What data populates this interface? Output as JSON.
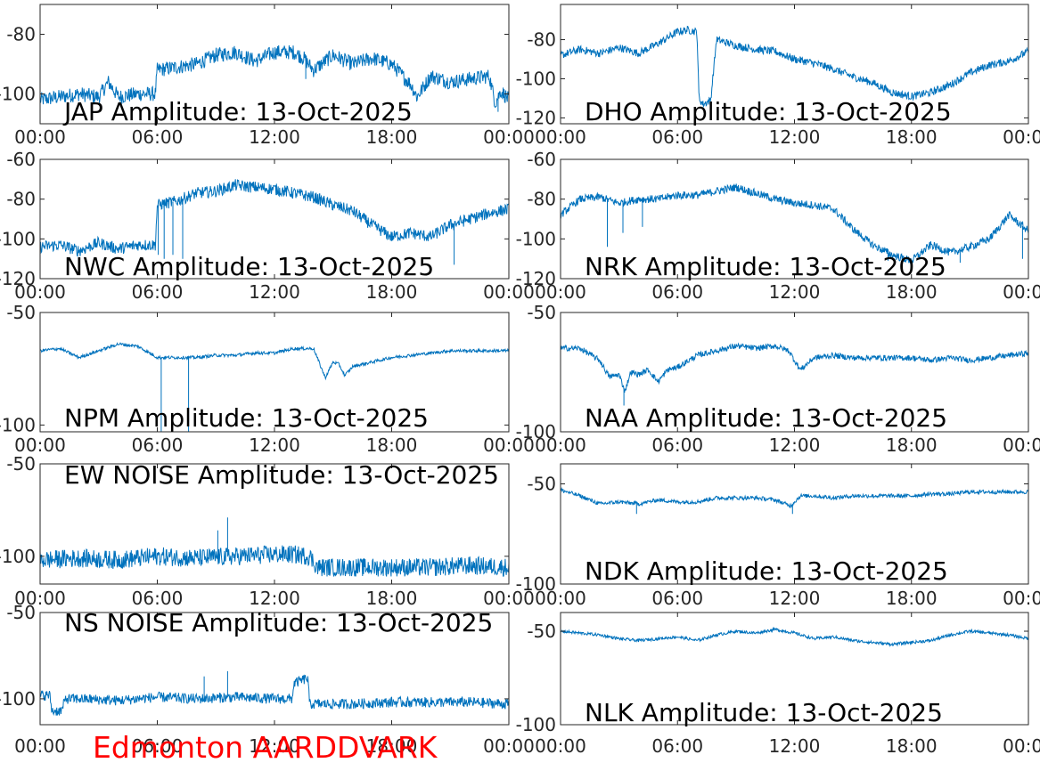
{
  "footer_label": "Edmonton AARDDVARK",
  "colors": {
    "trace": "#0072bd",
    "axes": "#262626",
    "footer": "#ff0000"
  },
  "chart_data": [
    {
      "type": "line",
      "title": "JAP Amplitude: 13-Oct-2025",
      "x_ticks": [
        "00:00",
        "06:00",
        "12:00",
        "18:00",
        "00:00"
      ],
      "y_ticks": [
        "-80",
        "-100"
      ],
      "ylim": [
        -110,
        -70
      ],
      "noise": 2.5,
      "x": [
        0,
        1,
        2,
        3,
        3.5,
        4,
        5,
        5.9,
        6.0,
        7,
        8,
        9,
        10,
        11,
        12,
        13,
        13.5,
        14,
        15,
        16,
        17,
        18,
        19,
        19.3,
        20,
        21,
        22,
        23,
        23.3,
        23.6,
        24
      ],
      "y": [
        -102,
        -101,
        -100,
        -101,
        -96,
        -101,
        -100,
        -100,
        -92,
        -91,
        -90,
        -87,
        -86,
        -89,
        -86,
        -86,
        -88,
        -92,
        -87,
        -90,
        -88,
        -90,
        -97,
        -101,
        -94,
        -96,
        -95,
        -94,
        -103,
        -99,
        -102
      ],
      "spikes": [
        {
          "x": 13.6,
          "y": -95
        },
        {
          "x": 23.45,
          "y": -106
        }
      ]
    },
    {
      "type": "line",
      "title": "DHO Amplitude: 13-Oct-2025",
      "x_ticks": [
        "00:00",
        "06:00",
        "12:00",
        "18:00",
        "00:00"
      ],
      "y_ticks": [
        "-80",
        "-100",
        "-120"
      ],
      "ylim": [
        -123,
        -62
      ],
      "noise": 2,
      "x": [
        0,
        1,
        2,
        3,
        4,
        5,
        6,
        6.5,
        7,
        7.1,
        7.3,
        7.7,
        8,
        9,
        10,
        11,
        12,
        13,
        14,
        15,
        16,
        17,
        18,
        19,
        20,
        21,
        22,
        23,
        24
      ],
      "y": [
        -88,
        -85,
        -87,
        -84,
        -87,
        -82,
        -76,
        -75,
        -76,
        -110,
        -113,
        -111,
        -80,
        -83,
        -85,
        -86,
        -90,
        -92,
        -95,
        -99,
        -102,
        -107,
        -109,
        -107,
        -103,
        -97,
        -93,
        -91,
        -86
      ],
      "spikes": []
    },
    {
      "type": "line",
      "title": "NWC Amplitude: 13-Oct-2025",
      "x_ticks": [
        "00:00",
        "06:00",
        "12:00",
        "18:00",
        "00:00"
      ],
      "y_ticks": [
        "-60",
        "-80",
        "-100",
        "-120"
      ],
      "ylim": [
        -120,
        -60
      ],
      "noise": 3,
      "x": [
        0,
        1,
        2,
        3,
        4,
        5,
        5.9,
        6.0,
        7,
        8,
        9,
        10,
        11,
        12,
        13,
        14,
        15,
        16,
        17,
        18,
        19,
        20,
        21,
        22,
        23,
        24
      ],
      "y": [
        -104,
        -103,
        -106,
        -102,
        -105,
        -103,
        -103,
        -83,
        -81,
        -77,
        -76,
        -73,
        -74,
        -75,
        -77,
        -79,
        -83,
        -86,
        -93,
        -99,
        -97,
        -99,
        -93,
        -90,
        -87,
        -85
      ],
      "spikes": [
        {
          "x": 6.05,
          "y": -108
        },
        {
          "x": 6.35,
          "y": -110
        },
        {
          "x": 6.8,
          "y": -108
        },
        {
          "x": 7.3,
          "y": -110
        },
        {
          "x": 21.2,
          "y": -113
        }
      ]
    },
    {
      "type": "line",
      "title": "NRK Amplitude: 13-Oct-2025",
      "x_ticks": [
        "00:00",
        "06:00",
        "12:00",
        "18:00",
        "00:00"
      ],
      "y_ticks": [
        "-60",
        "-80",
        "-100",
        "-120"
      ],
      "ylim": [
        -120,
        -60
      ],
      "noise": 2,
      "x": [
        0,
        1,
        2,
        3,
        4,
        5,
        6,
        7,
        8,
        9,
        10,
        11,
        12,
        13,
        14,
        15,
        16,
        17,
        18,
        19,
        20,
        21,
        22,
        23,
        24
      ],
      "y": [
        -88,
        -80,
        -79,
        -82,
        -80,
        -80,
        -78,
        -78,
        -76,
        -74,
        -77,
        -80,
        -82,
        -83,
        -85,
        -95,
        -103,
        -108,
        -111,
        -103,
        -107,
        -104,
        -100,
        -88,
        -96
      ],
      "spikes": [
        {
          "x": 2.4,
          "y": -104
        },
        {
          "x": 3.2,
          "y": -97
        },
        {
          "x": 4.2,
          "y": -94
        },
        {
          "x": 16.8,
          "y": -111
        },
        {
          "x": 20.5,
          "y": -112
        },
        {
          "x": 23.7,
          "y": -110
        }
      ]
    },
    {
      "type": "line",
      "title": "NPM Amplitude: 13-Oct-2025",
      "x_ticks": [
        "00:00",
        "06:00",
        "12:00",
        "18:00",
        "00:00"
      ],
      "y_ticks": [
        "-50",
        "-100"
      ],
      "ylim": [
        -103,
        -50
      ],
      "noise": 0.7,
      "x": [
        0,
        1,
        2,
        3,
        4,
        5,
        6,
        7,
        8,
        9,
        10,
        11,
        12,
        13,
        14,
        14.6,
        15,
        15.3,
        15.6,
        16,
        17,
        18,
        19,
        20,
        21,
        22,
        23,
        24
      ],
      "y": [
        -67,
        -66,
        -70,
        -67,
        -64,
        -65,
        -70,
        -70,
        -70,
        -69,
        -69,
        -68,
        -68,
        -66,
        -66,
        -79,
        -72,
        -73,
        -78,
        -74,
        -72,
        -70,
        -69,
        -68,
        -67,
        -67,
        -67,
        -67
      ],
      "spikes": [
        {
          "x": 6.2,
          "y": -103
        },
        {
          "x": 7.6,
          "y": -103
        }
      ]
    },
    {
      "type": "line",
      "title": "NAA Amplitude: 13-Oct-2025",
      "x_ticks": [
        "00:00",
        "06:00",
        "12:00",
        "18:00",
        "00:00"
      ],
      "y_ticks": [
        "-50",
        "-100"
      ],
      "ylim": [
        -100,
        -50
      ],
      "noise": 1.2,
      "x": [
        0,
        1,
        2,
        2.5,
        3,
        3.3,
        3.6,
        4,
        4.5,
        5,
        5.5,
        6,
        7,
        8,
        9,
        10,
        11,
        11.7,
        12.3,
        13,
        14,
        15,
        16,
        17,
        18,
        19,
        20,
        21,
        22,
        23,
        24
      ],
      "y": [
        -65,
        -65,
        -70,
        -77,
        -76,
        -83,
        -75,
        -76,
        -74,
        -79,
        -74,
        -73,
        -68,
        -66,
        -64,
        -65,
        -64,
        -66,
        -74,
        -69,
        -68,
        -69,
        -69,
        -69,
        -69,
        -70,
        -69,
        -70,
        -69,
        -68,
        -67
      ],
      "spikes": [
        {
          "x": 3.25,
          "y": -89
        }
      ]
    },
    {
      "type": "line",
      "title": "EW NOISE Amplitude: 13-Oct-2025",
      "x_ticks": [
        "00:00",
        "06:00",
        "12:00",
        "18:00",
        "00:00"
      ],
      "y_ticks": [
        "-50",
        "-100"
      ],
      "ylim": [
        -115,
        -50
      ],
      "noise": 5,
      "x": [
        0,
        2,
        4,
        6,
        8,
        10,
        12,
        13,
        13.8,
        14.2,
        16,
        18,
        20,
        22,
        24
      ],
      "y": [
        -102,
        -101,
        -102,
        -100,
        -101,
        -100,
        -99,
        -99,
        -100,
        -106,
        -106,
        -106,
        -106,
        -105,
        -106
      ],
      "spikes": [
        {
          "x": 9.6,
          "y": -79
        },
        {
          "x": 9.1,
          "y": -86
        }
      ]
    },
    {
      "type": "line",
      "title": "NDK Amplitude: 13-Oct-2025",
      "x_ticks": [
        "00:00",
        "06:00",
        "12:00",
        "18:00",
        "00:00"
      ],
      "y_ticks": [
        "-50",
        "-100"
      ],
      "ylim": [
        -100,
        -40
      ],
      "noise": 1,
      "x": [
        0,
        1,
        2,
        3,
        4,
        5,
        6,
        7,
        8,
        9,
        10,
        11,
        11.8,
        12.3,
        13,
        14,
        15,
        16,
        17,
        18,
        19,
        20,
        21,
        22,
        23,
        24
      ],
      "y": [
        -53,
        -56,
        -60,
        -59,
        -60,
        -58,
        -59,
        -59,
        -57,
        -57,
        -57,
        -58,
        -61,
        -56,
        -56,
        -57,
        -56,
        -56,
        -56,
        -56,
        -55,
        -55,
        -54,
        -54,
        -54,
        -54
      ],
      "spikes": [
        {
          "x": 3.9,
          "y": -65
        },
        {
          "x": 11.9,
          "y": -65
        }
      ]
    },
    {
      "type": "line",
      "title": "NS NOISE Amplitude: 13-Oct-2025",
      "x_ticks": [
        "00:00",
        "06:00",
        "12:00",
        "18:00",
        "00:00"
      ],
      "y_ticks": [
        "-50",
        "-100"
      ],
      "ylim": [
        -115,
        -50
      ],
      "noise": 3,
      "x": [
        0,
        0.5,
        0.6,
        1.1,
        1.3,
        2,
        4,
        6,
        8,
        10,
        12,
        12.9,
        13.0,
        13.7,
        13.8,
        14,
        16,
        18,
        20,
        22,
        24
      ],
      "y": [
        -98,
        -98,
        -107,
        -107,
        -100,
        -100,
        -101,
        -99,
        -100,
        -99,
        -100,
        -100,
        -91,
        -88,
        -103,
        -103,
        -103,
        -102,
        -102,
        -102,
        -103
      ],
      "spikes": [
        {
          "x": 9.6,
          "y": -84
        },
        {
          "x": 8.4,
          "y": -87
        }
      ]
    },
    {
      "type": "line",
      "title": "NLK Amplitude: 13-Oct-2025",
      "x_ticks": [
        "00:00",
        "06:00",
        "12:00",
        "18:00",
        "00:00"
      ],
      "y_ticks": [
        "-50",
        "-100"
      ],
      "ylim": [
        -100,
        -40
      ],
      "noise": 0.8,
      "x": [
        0,
        1,
        2,
        3,
        4,
        5,
        6,
        7,
        8,
        9,
        10,
        11,
        12,
        13,
        14,
        15,
        16,
        17,
        18,
        19,
        20,
        21,
        22,
        23,
        24
      ],
      "y": [
        -50,
        -51,
        -52,
        -54,
        -55,
        -54,
        -53,
        -55,
        -52,
        -50,
        -51,
        -49,
        -51,
        -54,
        -53,
        -55,
        -56,
        -57,
        -56,
        -55,
        -52,
        -50,
        -51,
        -52,
        -54
      ],
      "spikes": []
    }
  ]
}
